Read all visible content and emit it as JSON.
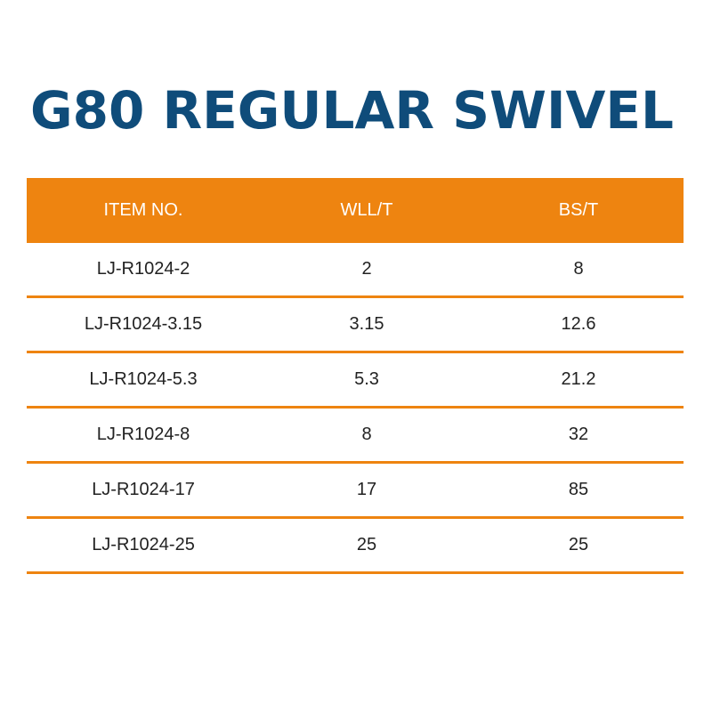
{
  "title": "G80 REGULAR SWIVEL",
  "colors": {
    "title": "#0f4c7a",
    "header_bg": "#ee8410",
    "header_text": "#ffffff",
    "row_divider": "#ee8410"
  },
  "table": {
    "headers": [
      "ITEM NO.",
      "WLL/T",
      "BS/T"
    ],
    "rows": [
      [
        "LJ-R1024-2",
        "2",
        "8"
      ],
      [
        "LJ-R1024-3.15",
        "3.15",
        "12.6"
      ],
      [
        "LJ-R1024-5.3",
        "5.3",
        "21.2"
      ],
      [
        "LJ-R1024-8",
        "8",
        "32"
      ],
      [
        "LJ-R1024-17",
        "17",
        "85"
      ],
      [
        "LJ-R1024-25",
        "25",
        "25"
      ]
    ]
  }
}
